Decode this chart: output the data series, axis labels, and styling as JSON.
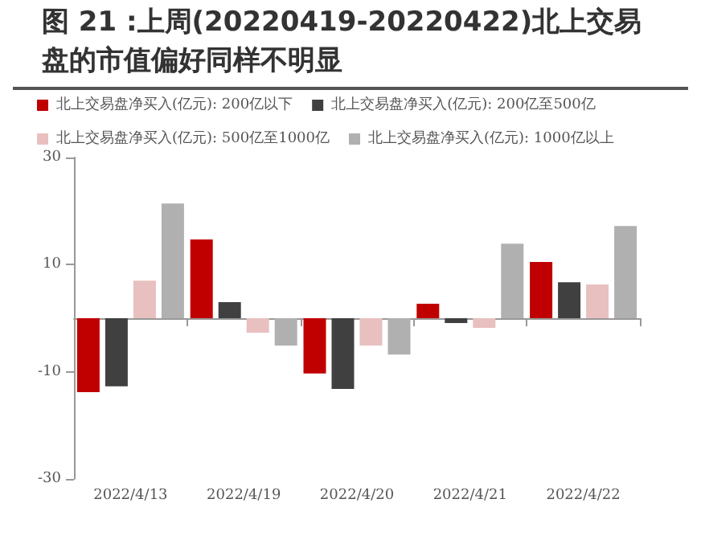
{
  "chart_data": {
    "type": "bar",
    "title": "图 21 :上周(20220419-20220422)北上交易盘的市值偏好同样不明显",
    "categories": [
      "2022/4/13",
      "2022/4/19",
      "2022/4/20",
      "2022/4/21",
      "2022/4/22"
    ],
    "series": [
      {
        "name": "北上交易盘净买入(亿元): 200亿以下",
        "color": "#c00000",
        "values": [
          -13.8,
          14.7,
          -10.3,
          2.7,
          10.5
        ]
      },
      {
        "name": "北上交易盘净买入(亿元): 200亿至500亿",
        "color": "#404040",
        "values": [
          -12.7,
          3.0,
          -13.2,
          -0.9,
          6.7
        ]
      },
      {
        "name": "北上交易盘净买入(亿元): 500亿至1000亿",
        "color": "#e8c0c0",
        "values": [
          7.0,
          -2.7,
          -5.1,
          -1.8,
          6.3
        ]
      },
      {
        "name": "北上交易盘净买入(亿元): 1000亿以上",
        "color": "#b0b0b0",
        "values": [
          21.4,
          -5.1,
          -6.8,
          13.9,
          17.2
        ]
      }
    ],
    "ylim": [
      -30,
      30
    ],
    "yticks": [
      -30,
      -10,
      10,
      30
    ],
    "grid": false,
    "legend": "top"
  }
}
